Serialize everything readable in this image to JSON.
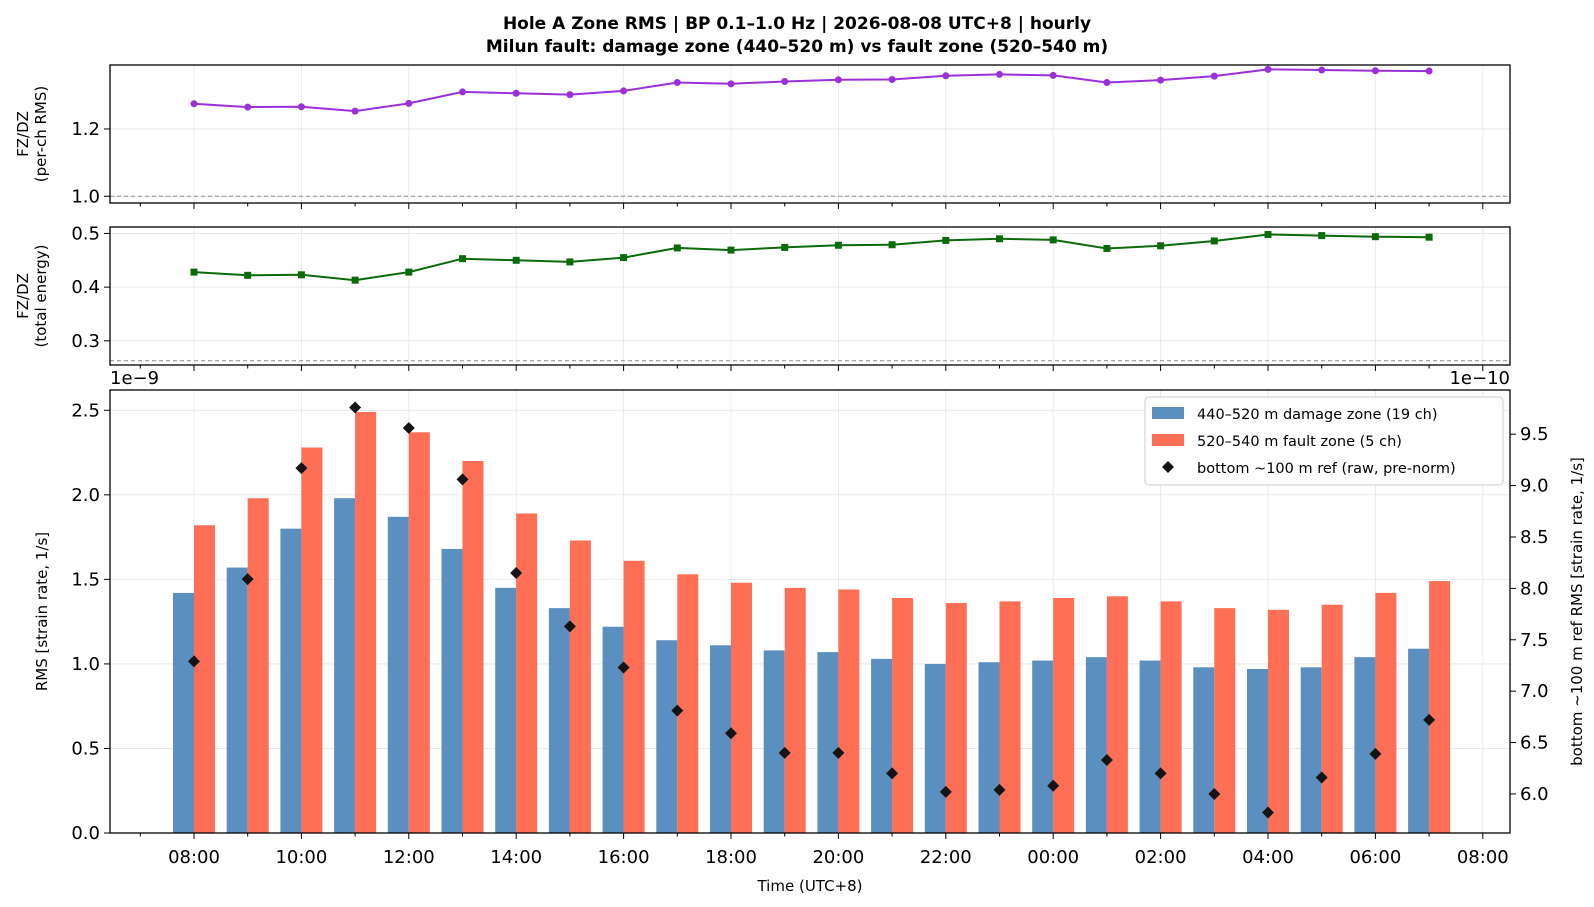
{
  "title_line1": "Hole A Zone RMS  |  BP 0.1–1.0 Hz  |  2026-08-08 UTC+8  |  hourly",
  "title_line2": "Milun fault: damage zone (440–520 m) vs fault zone (520–540 m)",
  "colors": {
    "ratio_rms": "#9b30d9",
    "ratio_energy": "#0b6a0b",
    "damage_zone": "#5b8fc0",
    "fault_zone": "#ff6f55",
    "reference": "#141414"
  },
  "chart_data": [
    {
      "type": "line",
      "ylabel": [
        "FZ/DZ",
        "(per-ch RMS)"
      ],
      "x_ticks": [
        "08:00",
        "10:00",
        "12:00",
        "14:00",
        "16:00",
        "18:00",
        "20:00",
        "22:00",
        "00:00",
        "02:00",
        "04:00",
        "06:00",
        "08:00"
      ],
      "y_ticks": [
        "1.0",
        "1.2"
      ],
      "ylim": [
        0.98,
        1.39
      ],
      "reference_line": 1.0,
      "grid": true,
      "series": [
        {
          "values": [
            1.275,
            1.265,
            1.266,
            1.253,
            1.276,
            1.31,
            1.306,
            1.302,
            1.313,
            1.338,
            1.334,
            1.341,
            1.346,
            1.347,
            1.358,
            1.362,
            1.359,
            1.338,
            1.345,
            1.357,
            1.377,
            1.375,
            1.373,
            1.372
          ]
        }
      ]
    },
    {
      "type": "line",
      "ylabel": [
        "FZ/DZ",
        "(total energy)"
      ],
      "y_ticks": [
        "0.3",
        "0.4",
        "0.5"
      ],
      "ylim": [
        0.255,
        0.512
      ],
      "reference_line": 0.263,
      "grid": true,
      "series": [
        {
          "values": [
            0.428,
            0.422,
            0.423,
            0.413,
            0.428,
            0.453,
            0.45,
            0.447,
            0.455,
            0.473,
            0.469,
            0.474,
            0.478,
            0.479,
            0.487,
            0.49,
            0.488,
            0.472,
            0.477,
            0.486,
            0.498,
            0.496,
            0.494,
            0.493
          ]
        }
      ]
    },
    {
      "type": "bar",
      "xlabel": "Time (UTC+8)",
      "ylabel": "RMS  [strain rate, 1/s]",
      "ylabel_right": "bottom ~100 m ref RMS  [strain rate, 1/s]",
      "offset_left": "1e−9",
      "offset_right": "1e−10",
      "ylim": [
        0,
        2.62
      ],
      "ylim_right": [
        5.62,
        9.93
      ],
      "y_ticks": [
        "0.0",
        "0.5",
        "1.0",
        "1.5",
        "2.0",
        "2.5"
      ],
      "y_ticks_right": [
        "6.0",
        "6.5",
        "7.0",
        "7.5",
        "8.0",
        "8.5",
        "9.0",
        "9.5"
      ],
      "legend_position": "upper right",
      "grid": true,
      "categories": [
        "08:00",
        "09:00",
        "10:00",
        "11:00",
        "12:00",
        "13:00",
        "14:00",
        "15:00",
        "16:00",
        "17:00",
        "18:00",
        "19:00",
        "20:00",
        "21:00",
        "22:00",
        "23:00",
        "00:00",
        "01:00",
        "02:00",
        "03:00",
        "04:00",
        "05:00",
        "06:00",
        "07:00"
      ],
      "series": [
        {
          "name": "440–520 m  damage zone (19 ch)",
          "values": [
            1.42,
            1.57,
            1.8,
            1.98,
            1.87,
            1.68,
            1.45,
            1.33,
            1.22,
            1.14,
            1.11,
            1.08,
            1.07,
            1.03,
            1.0,
            1.01,
            1.02,
            1.04,
            1.02,
            0.98,
            0.97,
            0.98,
            1.04,
            1.09
          ]
        },
        {
          "name": "520–540 m  fault zone (5 ch)",
          "values": [
            1.82,
            1.98,
            2.28,
            2.49,
            2.37,
            2.2,
            1.89,
            1.73,
            1.61,
            1.53,
            1.48,
            1.45,
            1.44,
            1.39,
            1.36,
            1.37,
            1.39,
            1.4,
            1.37,
            1.33,
            1.32,
            1.35,
            1.42,
            1.49
          ]
        },
        {
          "name": "bottom ~100 m ref (raw, pre-norm)",
          "axis": "right",
          "values": [
            7.29,
            8.09,
            9.17,
            9.76,
            9.56,
            9.06,
            8.15,
            7.63,
            7.23,
            6.81,
            6.59,
            6.4,
            6.4,
            6.2,
            6.02,
            6.04,
            6.08,
            6.33,
            6.2,
            6.0,
            5.82,
            6.16,
            6.39,
            6.72
          ]
        }
      ]
    }
  ]
}
